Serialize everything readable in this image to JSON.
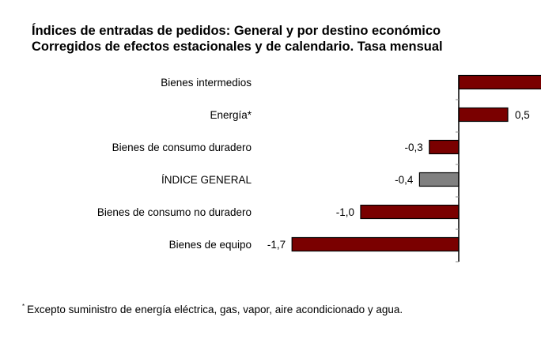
{
  "chart_data": {
    "type": "bar",
    "orientation": "horizontal",
    "title": "Índices de entradas de pedidos: General y por destino económico",
    "subtitle": "Corregidos de efectos estacionales y de calendario. Tasa mensual",
    "categories": [
      "Bienes intermedios",
      "Energía*",
      "Bienes de consumo duradero",
      "ÍNDICE GENERAL",
      "Bienes de consumo no duradero",
      "Bienes de equipo"
    ],
    "values": [
      null,
      0.5,
      -0.3,
      -0.4,
      -1.0,
      -1.7
    ],
    "value_labels": [
      "",
      "0,5",
      "-0,3",
      "-0,4",
      "-1,0",
      "-1,7"
    ],
    "bar_colors": [
      "#7a0000",
      "#7a0000",
      "#7a0000",
      "#808080",
      "#7a0000",
      "#7a0000"
    ],
    "notes": "Bienes intermedios bar extends beyond the visible area; its value label is not visible.",
    "xlabel": "",
    "ylabel": "",
    "grid": false,
    "legend": "none"
  },
  "footnote": {
    "marker": "*",
    "text": "Excepto suministro de energía eléctrica, gas, vapor, aire acondicionado y agua."
  },
  "colors": {
    "bar": "#7a0000",
    "highlight_bar": "#808080",
    "axis": "#000000"
  }
}
